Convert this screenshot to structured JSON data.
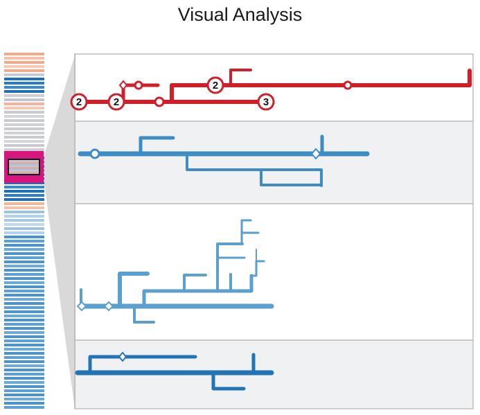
{
  "title": "Visual Analysis",
  "colors": {
    "red": "#d11f2a",
    "blue_light": "#5a9fd0",
    "blue_mid": "#3e8cc6",
    "blue_dark": "#2274b5",
    "panel_alt": "#f0f1f3",
    "panel_border": "#bdbdbd",
    "funnel": "#d9d9d9"
  },
  "overview_stripes": [
    "#f3ab8e",
    "#f6c1a6",
    "#f3ab8e",
    "#f7c9b1",
    "#f3ab8e",
    "#c9c9d2",
    "#1f6fb6",
    "#2b7dc0",
    "#3a8ac8",
    "#1f6fb6",
    "#cfcfd8",
    "#c5c5cf",
    "#f2b49b",
    "#f5c8b5",
    "#c9c9d2",
    "#d4d4dc",
    "#c9c9d2",
    "#cfcfd8",
    "#c9c9d2",
    "#cfcfd8",
    "#c9c9d2",
    "#d4d4dc",
    "#c9c9d2",
    "#cfcfd8",
    "#c9c9d2",
    "#1f6fb6",
    "#2b7dc0",
    "#1f6fb6",
    "#3a8ac8",
    "#1f6fb6",
    "#2b7dc0",
    "#1f6fb6",
    "#3a8ac8",
    "#1f6fb6",
    "#2b7dc0",
    "#1f6fb6",
    "#f2b49b",
    "#f5c1ab",
    "#9fc4e2",
    "#b3d0ea",
    "#a6c9e6",
    "#c1d8ee",
    "#9fc4e2",
    "#b3d0ea",
    "#4a93cc",
    "#5ea0d4",
    "#4a93cc",
    "#6aa8d8",
    "#4a93cc",
    "#5ea0d4",
    "#4a93cc",
    "#6aa8d8",
    "#4a93cc",
    "#5ea0d4",
    "#4a93cc",
    "#6aa8d8",
    "#4a93cc",
    "#5ea0d4",
    "#4a93cc",
    "#6aa8d8",
    "#4a93cc",
    "#5ea0d4",
    "#4a93cc",
    "#6aa8d8",
    "#4a93cc",
    "#5ea0d4",
    "#4a93cc",
    "#6aa8d8",
    "#4a93cc",
    "#5ea0d4",
    "#4a93cc",
    "#6aa8d8",
    "#4a93cc",
    "#5ea0d4",
    "#4a93cc",
    "#6aa8d8",
    "#4a93cc",
    "#5ea0d4",
    "#4a93cc",
    "#6aa8d8",
    "#4a93cc",
    "#5ea0d4",
    "#4a93cc",
    "#6aa8d8",
    "#4a93cc",
    "#5ea0d4"
  ],
  "panels": [
    {
      "id": "panel-1",
      "color": "red",
      "background": "white",
      "labels": [
        "2",
        "2",
        "2",
        "3"
      ]
    },
    {
      "id": "panel-2",
      "color": "blue_mid",
      "background": "alt"
    },
    {
      "id": "panel-3",
      "color": "blue_light",
      "background": "white"
    },
    {
      "id": "panel-4",
      "color": "blue_dark",
      "background": "alt"
    }
  ]
}
